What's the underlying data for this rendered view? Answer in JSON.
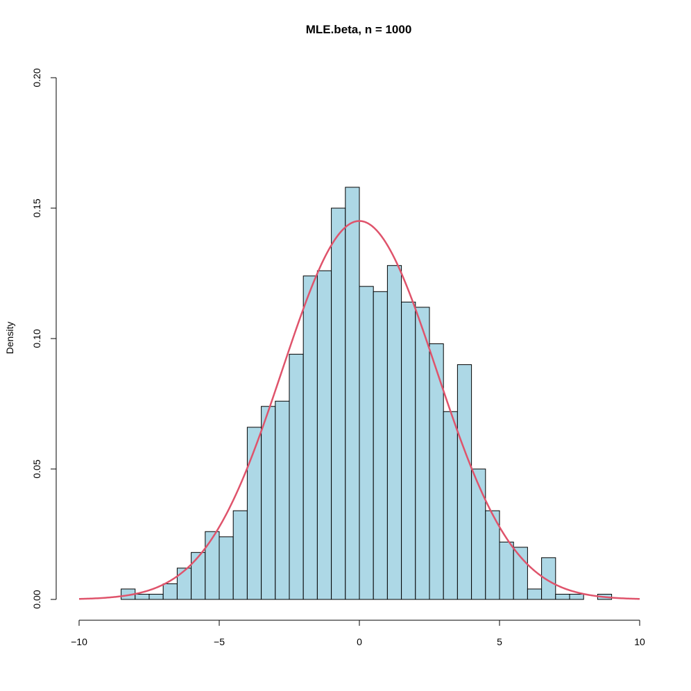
{
  "chart_data": {
    "type": "bar",
    "title": "MLE.beta, n = 1000",
    "xlabel": "",
    "ylabel": "Density",
    "xlim": [
      -10,
      10
    ],
    "ylim": [
      0,
      0.2
    ],
    "x_ticks": [
      -10,
      -5,
      0,
      5,
      10
    ],
    "x_tick_labels": [
      "−10",
      "−5",
      "0",
      "5",
      "10"
    ],
    "y_ticks": [
      0,
      0.05,
      0.1,
      0.15,
      0.2
    ],
    "y_tick_labels": [
      "0.00",
      "0.05",
      "0.10",
      "0.15",
      "0.20"
    ],
    "bin_width": 0.5,
    "bins": [
      {
        "x0": -8.5,
        "x1": -8.0,
        "density": 0.004
      },
      {
        "x0": -8.0,
        "x1": -7.5,
        "density": 0.002
      },
      {
        "x0": -7.5,
        "x1": -7.0,
        "density": 0.002
      },
      {
        "x0": -7.0,
        "x1": -6.5,
        "density": 0.006
      },
      {
        "x0": -6.5,
        "x1": -6.0,
        "density": 0.012
      },
      {
        "x0": -6.0,
        "x1": -5.5,
        "density": 0.018
      },
      {
        "x0": -5.5,
        "x1": -5.0,
        "density": 0.026
      },
      {
        "x0": -5.0,
        "x1": -4.5,
        "density": 0.024
      },
      {
        "x0": -4.5,
        "x1": -4.0,
        "density": 0.034
      },
      {
        "x0": -4.0,
        "x1": -3.5,
        "density": 0.066
      },
      {
        "x0": -3.5,
        "x1": -3.0,
        "density": 0.074
      },
      {
        "x0": -3.0,
        "x1": -2.5,
        "density": 0.076
      },
      {
        "x0": -2.5,
        "x1": -2.0,
        "density": 0.094
      },
      {
        "x0": -2.0,
        "x1": -1.5,
        "density": 0.124
      },
      {
        "x0": -1.5,
        "x1": -1.0,
        "density": 0.126
      },
      {
        "x0": -1.0,
        "x1": -0.5,
        "density": 0.15
      },
      {
        "x0": -0.5,
        "x1": 0.0,
        "density": 0.158
      },
      {
        "x0": 0.0,
        "x1": 0.5,
        "density": 0.12
      },
      {
        "x0": 0.5,
        "x1": 1.0,
        "density": 0.118
      },
      {
        "x0": 1.0,
        "x1": 1.5,
        "density": 0.128
      },
      {
        "x0": 1.5,
        "x1": 2.0,
        "density": 0.114
      },
      {
        "x0": 2.0,
        "x1": 2.5,
        "density": 0.112
      },
      {
        "x0": 2.5,
        "x1": 3.0,
        "density": 0.098
      },
      {
        "x0": 3.0,
        "x1": 3.5,
        "density": 0.072
      },
      {
        "x0": 3.5,
        "x1": 4.0,
        "density": 0.09
      },
      {
        "x0": 4.0,
        "x1": 4.5,
        "density": 0.05
      },
      {
        "x0": 4.5,
        "x1": 5.0,
        "density": 0.034
      },
      {
        "x0": 5.0,
        "x1": 5.5,
        "density": 0.022
      },
      {
        "x0": 5.5,
        "x1": 6.0,
        "density": 0.02
      },
      {
        "x0": 6.0,
        "x1": 6.5,
        "density": 0.004
      },
      {
        "x0": 6.5,
        "x1": 7.0,
        "density": 0.016
      },
      {
        "x0": 7.0,
        "x1": 7.5,
        "density": 0.002
      },
      {
        "x0": 7.5,
        "x1": 8.0,
        "density": 0.002
      },
      {
        "x0": 8.0,
        "x1": 8.5,
        "density": 0.0
      },
      {
        "x0": 8.5,
        "x1": 9.0,
        "density": 0.002
      }
    ],
    "density_curve": {
      "type": "line",
      "distribution": "normal",
      "mean": 0,
      "sd": 2.75,
      "x_range": [
        -10,
        10
      ]
    },
    "grid": false,
    "colors": {
      "bar_fill": "#add8e6",
      "bar_stroke": "#000000",
      "curve": "#df536b",
      "axis": "#000000"
    }
  }
}
